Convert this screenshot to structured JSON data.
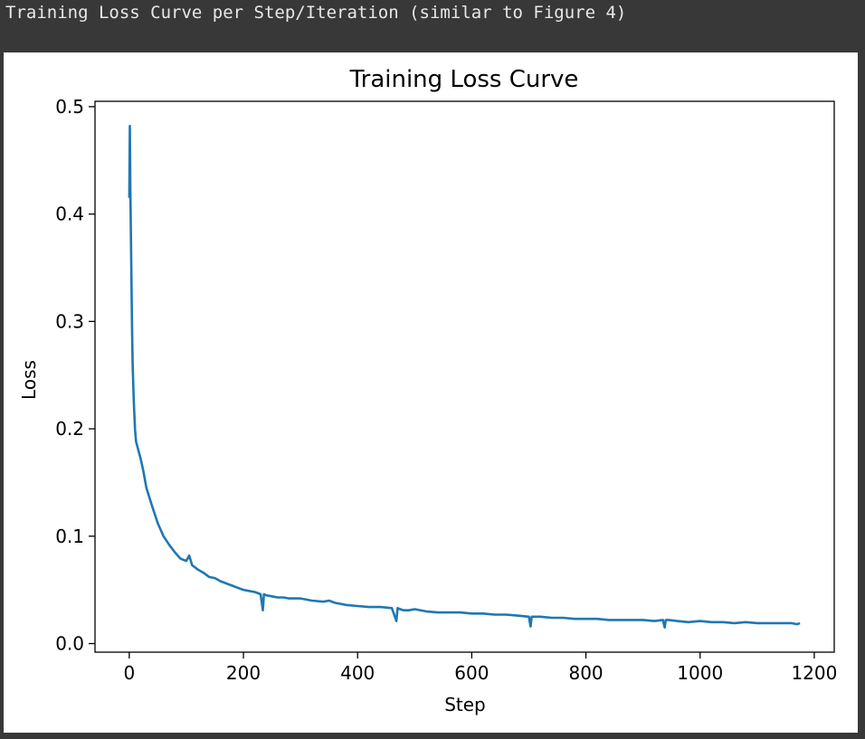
{
  "cell": {
    "title": "Training Loss Curve per Step/Iteration (similar to Figure 4)"
  },
  "colors": {
    "line": "#1f77b4",
    "background_dark": "#383838"
  },
  "chart_data": {
    "type": "line",
    "title": "Training Loss Curve",
    "xlabel": "Step",
    "ylabel": "Loss",
    "xlim": [
      -60,
      1235
    ],
    "ylim": [
      -0.008,
      0.505
    ],
    "xticks": [
      0,
      200,
      400,
      600,
      800,
      1000,
      1200
    ],
    "yticks": [
      0.0,
      0.1,
      0.2,
      0.3,
      0.4,
      0.5
    ],
    "xtick_labels": [
      "0",
      "200",
      "400",
      "600",
      "800",
      "1000",
      "1200"
    ],
    "ytick_labels": [
      "0.0",
      "0.1",
      "0.2",
      "0.3",
      "0.4",
      "0.5"
    ],
    "grid": false,
    "legend": "none",
    "series": [
      {
        "x": [
          0,
          1,
          2,
          3,
          4,
          5,
          6,
          8,
          10,
          12,
          15,
          20,
          25,
          30,
          40,
          50,
          60,
          70,
          80,
          90,
          100,
          105,
          110,
          120,
          130,
          140,
          150,
          160,
          170,
          180,
          190,
          200,
          210,
          220,
          230,
          234,
          236,
          240,
          250,
          260,
          270,
          280,
          290,
          300,
          320,
          340,
          350,
          360,
          380,
          400,
          420,
          440,
          460,
          468,
          470,
          475,
          480,
          490,
          500,
          520,
          540,
          560,
          580,
          600,
          620,
          640,
          660,
          680,
          700,
          703,
          705,
          710,
          720,
          740,
          760,
          780,
          800,
          820,
          840,
          860,
          880,
          900,
          920,
          935,
          938,
          940,
          945,
          960,
          980,
          1000,
          1020,
          1040,
          1060,
          1080,
          1100,
          1120,
          1140,
          1160,
          1170,
          1175
        ],
        "y": [
          0.415,
          0.482,
          0.42,
          0.38,
          0.33,
          0.29,
          0.26,
          0.225,
          0.2,
          0.188,
          0.182,
          0.172,
          0.16,
          0.145,
          0.128,
          0.112,
          0.1,
          0.092,
          0.085,
          0.079,
          0.077,
          0.082,
          0.073,
          0.069,
          0.066,
          0.062,
          0.061,
          0.058,
          0.056,
          0.054,
          0.052,
          0.05,
          0.049,
          0.048,
          0.046,
          0.031,
          0.046,
          0.045,
          0.044,
          0.043,
          0.043,
          0.042,
          0.042,
          0.042,
          0.04,
          0.039,
          0.04,
          0.038,
          0.036,
          0.035,
          0.034,
          0.034,
          0.033,
          0.021,
          0.033,
          0.032,
          0.031,
          0.031,
          0.032,
          0.03,
          0.029,
          0.029,
          0.029,
          0.028,
          0.028,
          0.027,
          0.027,
          0.026,
          0.025,
          0.016,
          0.025,
          0.025,
          0.025,
          0.024,
          0.024,
          0.023,
          0.023,
          0.023,
          0.022,
          0.022,
          0.022,
          0.022,
          0.021,
          0.022,
          0.015,
          0.022,
          0.022,
          0.021,
          0.02,
          0.021,
          0.02,
          0.02,
          0.019,
          0.02,
          0.019,
          0.019,
          0.019,
          0.019,
          0.018,
          0.019
        ]
      }
    ]
  }
}
